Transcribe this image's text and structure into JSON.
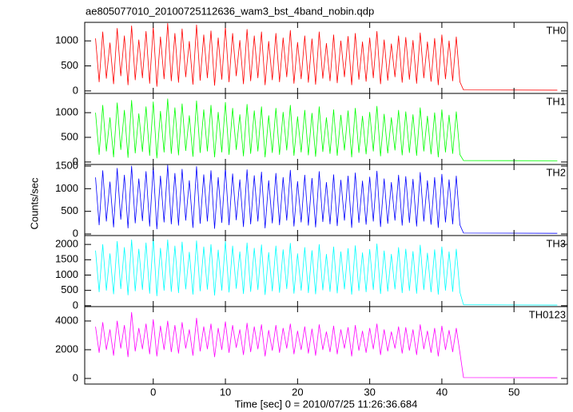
{
  "chart_data": {
    "type": "line",
    "title": "ae805077010_20100725112636_wam3_bst_4band_nobin.qdp",
    "y_label": "Counts/sec",
    "x_label": "Time [sec] 0 = 2010/07/25 11:26:36.684",
    "xlim": [
      -9.5,
      57.4
    ],
    "xticks": [
      0,
      10,
      20,
      30,
      40,
      50
    ],
    "x": [
      -8,
      -7.5,
      -7,
      -6.5,
      -6,
      -5.5,
      -5,
      -4.5,
      -4,
      -3.5,
      -3,
      -2.5,
      -2,
      -1.5,
      -1,
      -0.5,
      0,
      0.5,
      1,
      1.5,
      2,
      2.5,
      3,
      3.5,
      4,
      4.5,
      5,
      5.5,
      6,
      6.5,
      7,
      7.5,
      8,
      8.5,
      9,
      9.5,
      10,
      10.5,
      11,
      11.5,
      12,
      12.5,
      13,
      13.5,
      14,
      14.5,
      15,
      15.5,
      16,
      16.5,
      17,
      17.5,
      18,
      18.5,
      19,
      19.5,
      20,
      20.5,
      21,
      21.5,
      22,
      22.5,
      23,
      23.5,
      24,
      24.5,
      25,
      25.5,
      26,
      26.5,
      27,
      27.5,
      28,
      28.5,
      29,
      29.5,
      30,
      30.5,
      31,
      31.5,
      32,
      32.5,
      33,
      33.5,
      34,
      34.5,
      35,
      35.5,
      36,
      36.5,
      37,
      37.5,
      38,
      38.5,
      39,
      39.5,
      40,
      40.5,
      41,
      41.5,
      42,
      42.5,
      43,
      56
    ],
    "series": [
      {
        "name": "TH0",
        "color": "#ff0000",
        "ylim": [
          -50,
          1370
        ],
        "yticks": [
          0,
          500,
          1000
        ],
        "values": [
          1050,
          180,
          1180,
          250,
          960,
          140,
          1250,
          300,
          1100,
          120,
          1300,
          220,
          1020,
          260,
          1190,
          150,
          1280,
          90,
          1080,
          240,
          1350,
          200,
          1150,
          170,
          1240,
          280,
          990,
          130,
          1320,
          210,
          1120,
          260,
          1200,
          110,
          1060,
          230,
          1280,
          180,
          1150,
          300,
          1010,
          140,
          1230,
          200,
          1100,
          260,
          1180,
          120,
          990,
          220,
          1150,
          180,
          1060,
          280,
          1210,
          150,
          970,
          240,
          1100,
          170,
          1040,
          130,
          1180,
          250,
          950,
          200,
          1120,
          160,
          1000,
          280,
          1090,
          120,
          1150,
          230,
          980,
          190,
          1060,
          260,
          1190,
          140,
          1020,
          210,
          940,
          280,
          1100,
          170,
          1070,
          230,
          1010,
          150,
          1160,
          260,
          980,
          190,
          1050,
          120,
          1120,
          240,
          1000,
          200,
          1080,
          180,
          20,
          15
        ]
      },
      {
        "name": "TH1",
        "color": "#00ff00",
        "ylim": [
          -50,
          1390
        ],
        "yticks": [
          0,
          500,
          1000
        ],
        "values": [
          1000,
          150,
          1150,
          220,
          900,
          100,
          1200,
          250,
          1050,
          90,
          1250,
          180,
          980,
          210,
          1120,
          130,
          1220,
          80,
          1030,
          200,
          1280,
          170,
          1100,
          140,
          1180,
          230,
          940,
          110,
          1240,
          190,
          1060,
          220,
          1150,
          100,
          1010,
          200,
          1210,
          150,
          1090,
          250,
          960,
          120,
          1170,
          170,
          1040,
          220,
          1120,
          100,
          940,
          190,
          1090,
          150,
          1010,
          240,
          1150,
          130,
          920,
          200,
          1050,
          140,
          990,
          110,
          1120,
          210,
          900,
          170,
          1060,
          130,
          950,
          240,
          1040,
          100,
          1090,
          190,
          930,
          160,
          1010,
          220,
          1130,
          120,
          970,
          180,
          900,
          240,
          1050,
          140,
          1020,
          190,
          960,
          130,
          1100,
          220,
          930,
          160,
          1000,
          100,
          1060,
          200,
          950,
          170,
          1020,
          150,
          30,
          25
        ]
      },
      {
        "name": "TH2",
        "color": "#0000ff",
        "ylim": [
          -35,
          1535
        ],
        "yticks": [
          0,
          500,
          1000,
          1500
        ],
        "values": [
          1250,
          200,
          1400,
          280,
          1150,
          150,
          1450,
          320,
          1300,
          130,
          1500,
          240,
          1220,
          290,
          1380,
          170,
          1480,
          110,
          1280,
          260,
          1520,
          220,
          1340,
          190,
          1430,
          300,
          1180,
          140,
          1490,
          230,
          1310,
          280,
          1400,
          120,
          1250,
          250,
          1460,
          200,
          1330,
          310,
          1200,
          160,
          1420,
          220,
          1290,
          280,
          1370,
          130,
          1180,
          240,
          1340,
          200,
          1250,
          300,
          1410,
          170,
          1160,
          260,
          1300,
          190,
          1230,
          150,
          1380,
          270,
          1140,
          220,
          1310,
          180,
          1190,
          300,
          1280,
          140,
          1350,
          250,
          1170,
          210,
          1260,
          280,
          1390,
          160,
          1220,
          230,
          1140,
          300,
          1300,
          190,
          1270,
          250,
          1210,
          170,
          1360,
          280,
          1180,
          210,
          1250,
          140,
          1320,
          260,
          1200,
          220,
          1280,
          200,
          20,
          15
        ]
      },
      {
        "name": "TH3",
        "color": "#00ffff",
        "ylim": [
          -30,
          2290
        ],
        "yticks": [
          0,
          500,
          1000,
          1500,
          2000
        ],
        "values": [
          1800,
          450,
          2000,
          500,
          1700,
          380,
          2100,
          550,
          1900,
          350,
          2150,
          480,
          1850,
          520,
          2050,
          400,
          2200,
          320,
          1880,
          500,
          2150,
          460,
          1950,
          420,
          2080,
          540,
          1750,
          370,
          2120,
          480,
          1920,
          530,
          2000,
          340,
          1820,
          500,
          2100,
          440,
          1950,
          560,
          1760,
          390,
          2050,
          460,
          1880,
          520,
          1990,
          360,
          1740,
          480,
          1950,
          430,
          1830,
          550,
          2040,
          400,
          1700,
          500,
          1900,
          420,
          1800,
          380,
          2000,
          510,
          1680,
          460,
          1920,
          410,
          1760,
          540,
          1870,
          370,
          1960,
          490,
          1730,
          450,
          1840,
          520,
          2020,
          390,
          1790,
          470,
          1680,
          540,
          1900,
          420,
          1850,
          490,
          1770,
          400,
          1980,
          520,
          1720,
          450,
          1830,
          370,
          1920,
          500,
          1760,
          460,
          1850,
          440,
          30,
          20
        ]
      },
      {
        "name": "TH0123",
        "color": "#ff00ff",
        "ylim": [
          -390,
          5000
        ],
        "yticks": [
          0,
          2000,
          4000
        ],
        "values": [
          3600,
          1800,
          3900,
          2000,
          3400,
          1600,
          4000,
          2100,
          3700,
          1500,
          4600,
          1900,
          3500,
          2050,
          3800,
          1700,
          4100,
          1550,
          3650,
          2000,
          4000,
          1850,
          3700,
          1750,
          3900,
          2100,
          3400,
          1600,
          4200,
          1900,
          3600,
          2050,
          3800,
          1500,
          3500,
          2000,
          3950,
          1800,
          3700,
          2150,
          3400,
          1650,
          3850,
          1850,
          3600,
          2050,
          3750,
          1550,
          3350,
          1950,
          3700,
          1800,
          3500,
          2100,
          3800,
          1700,
          3300,
          2000,
          3600,
          1750,
          3450,
          1600,
          3750,
          2000,
          3250,
          1850,
          3650,
          1700,
          3400,
          2100,
          3550,
          1550,
          3700,
          1950,
          3300,
          1800,
          3500,
          2050,
          3800,
          1650,
          3400,
          1900,
          3250,
          2100,
          3600,
          1750,
          3550,
          1950,
          3400,
          1650,
          3750,
          2050,
          3300,
          1800,
          3500,
          1550,
          3650,
          2000,
          3350,
          1850,
          3500,
          1800,
          60,
          50
        ]
      }
    ]
  }
}
